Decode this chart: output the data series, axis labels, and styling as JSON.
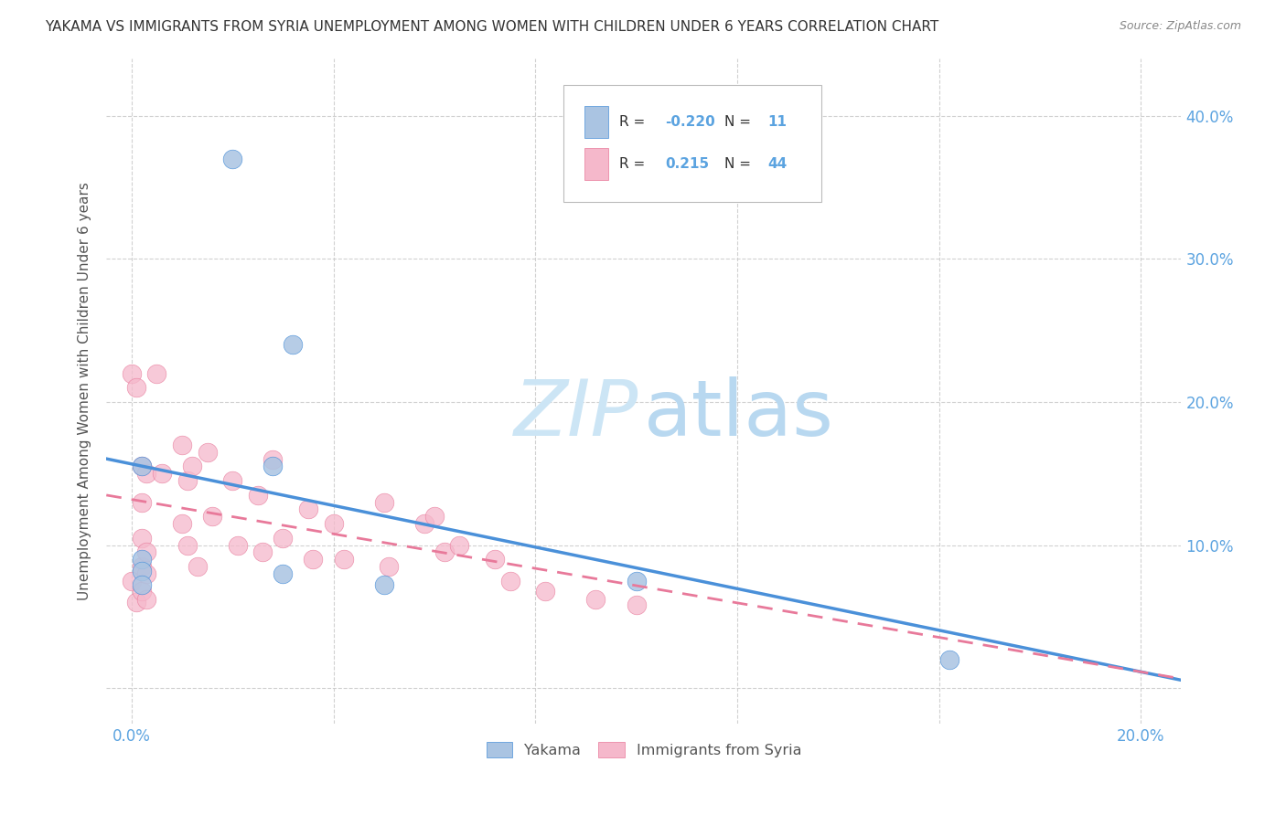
{
  "title": "YAKAMA VS IMMIGRANTS FROM SYRIA UNEMPLOYMENT AMONG WOMEN WITH CHILDREN UNDER 6 YEARS CORRELATION CHART",
  "source": "Source: ZipAtlas.com",
  "ylabel": "Unemployment Among Women with Children Under 6 years",
  "legend_label1": "Yakama",
  "legend_label2": "Immigrants from Syria",
  "R1": -0.22,
  "N1": 11,
  "R2": 0.215,
  "N2": 44,
  "x_ticks": [
    0.0,
    0.04,
    0.08,
    0.12,
    0.16,
    0.2
  ],
  "y_ticks": [
    0.0,
    0.1,
    0.2,
    0.3,
    0.4
  ],
  "xlim": [
    -0.005,
    0.208
  ],
  "ylim": [
    -0.025,
    0.44
  ],
  "color_yakama": "#aac4e2",
  "color_syria": "#f5b8cb",
  "line_color_yakama": "#4a90d9",
  "line_color_syria": "#e8799a",
  "background_color": "#ffffff",
  "watermark_zip_color": "#cce5f5",
  "watermark_atlas_color": "#b8d8f0",
  "yakama_points_x": [
    0.02,
    0.002,
    0.032,
    0.028,
    0.002,
    0.002,
    0.002,
    0.1,
    0.162,
    0.03,
    0.05
  ],
  "yakama_points_y": [
    0.37,
    0.155,
    0.24,
    0.155,
    0.09,
    0.082,
    0.072,
    0.075,
    0.02,
    0.08,
    0.072
  ],
  "syria_points_x": [
    0.0,
    0.0,
    0.001,
    0.001,
    0.002,
    0.002,
    0.002,
    0.002,
    0.002,
    0.003,
    0.003,
    0.003,
    0.003,
    0.005,
    0.006,
    0.01,
    0.01,
    0.011,
    0.011,
    0.012,
    0.013,
    0.015,
    0.016,
    0.02,
    0.021,
    0.025,
    0.026,
    0.028,
    0.03,
    0.035,
    0.036,
    0.04,
    0.042,
    0.05,
    0.051,
    0.058,
    0.06,
    0.062,
    0.065,
    0.072,
    0.075,
    0.082,
    0.092,
    0.1
  ],
  "syria_points_y": [
    0.22,
    0.075,
    0.21,
    0.06,
    0.155,
    0.13,
    0.105,
    0.085,
    0.068,
    0.15,
    0.095,
    0.08,
    0.062,
    0.22,
    0.15,
    0.17,
    0.115,
    0.145,
    0.1,
    0.155,
    0.085,
    0.165,
    0.12,
    0.145,
    0.1,
    0.135,
    0.095,
    0.16,
    0.105,
    0.125,
    0.09,
    0.115,
    0.09,
    0.13,
    0.085,
    0.115,
    0.12,
    0.095,
    0.1,
    0.09,
    0.075,
    0.068,
    0.062,
    0.058
  ]
}
